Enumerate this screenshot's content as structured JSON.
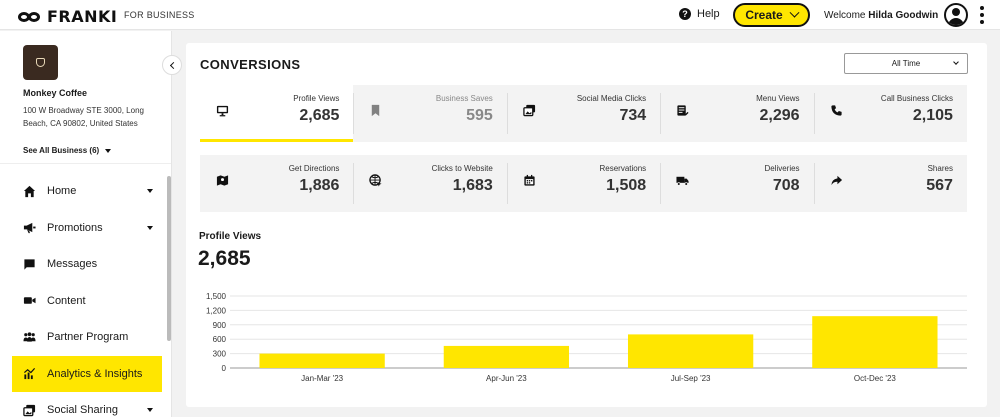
{
  "topbar": {
    "logo_text": "FRANKI",
    "for_business": "FOR BUSINESS",
    "help_label": "Help",
    "create_label": "Create",
    "welcome_prefix": "Welcome",
    "user_name": "Hilda Goodwin"
  },
  "sidebar": {
    "business_name": "Monkey Coffee",
    "business_address": "100 W Broadway STE 3000, Long Beach, CA 90802, United States",
    "see_all": "See All Business (6)",
    "items": [
      {
        "label": "Home",
        "icon": "home-icon",
        "has_caret": true
      },
      {
        "label": "Promotions",
        "icon": "megaphone-icon",
        "has_caret": true
      },
      {
        "label": "Messages",
        "icon": "chat-icon",
        "has_caret": false
      },
      {
        "label": "Content",
        "icon": "video-camera-icon",
        "has_caret": false
      },
      {
        "label": "Partner Program",
        "icon": "people-icon",
        "has_caret": false
      },
      {
        "label": "Analytics & Insights",
        "icon": "chart-icon",
        "has_caret": false,
        "active": true
      },
      {
        "label": "Social Sharing",
        "icon": "share-images-icon",
        "has_caret": true
      }
    ]
  },
  "conversions": {
    "title": "CONVERSIONS",
    "time_filter": "All Time",
    "row1": [
      {
        "label": "Profile Views",
        "value": "2,685",
        "icon": "monitor-icon",
        "selected": true
      },
      {
        "label": "Business Saves",
        "value": "595",
        "icon": "bookmark-icon",
        "dim": true
      },
      {
        "label": "Social Media Clicks",
        "value": "734",
        "icon": "images-icon"
      },
      {
        "label": "Menu Views",
        "value": "2,296",
        "icon": "menu-book-icon"
      },
      {
        "label": "Call Business Clicks",
        "value": "2,105",
        "icon": "phone-icon"
      }
    ],
    "row2": [
      {
        "label": "Get Directions",
        "value": "1,886",
        "icon": "map-icon"
      },
      {
        "label": "Clicks to Website",
        "value": "1,683",
        "icon": "globe-icon"
      },
      {
        "label": "Reservations",
        "value": "1,508",
        "icon": "calendar-icon"
      },
      {
        "label": "Deliveries",
        "value": "708",
        "icon": "truck-icon"
      },
      {
        "label": "Shares",
        "value": "567",
        "icon": "share-arrow-icon"
      }
    ]
  },
  "detail": {
    "label": "Profile Views",
    "value": "2,685"
  },
  "colors": {
    "accent": "#ffe600",
    "text": "#1a1a1a"
  },
  "chart_data": {
    "type": "bar",
    "categories": [
      "Jan-Mar '23",
      "Apr-Jun '23",
      "Jul-Sep '23",
      "Oct-Dec '23"
    ],
    "values": [
      300,
      460,
      700,
      1080
    ],
    "yticks": [
      "0",
      "300",
      "600",
      "900",
      "1,200",
      "1,500"
    ],
    "ylim": [
      0,
      1500
    ],
    "grid": true,
    "color": "#ffe600"
  }
}
